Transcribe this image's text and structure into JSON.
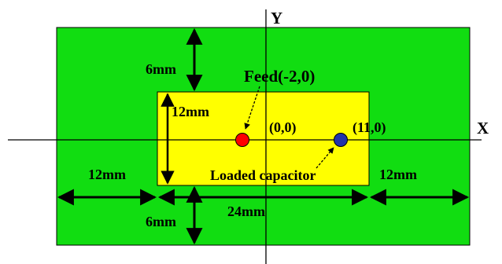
{
  "colors": {
    "background": "#ffffff",
    "ground_plane": "#11dd11",
    "patch": "#ffff00",
    "feed_point": "#ff0000",
    "capacitor_point": "#2233aa",
    "lines": "#000000"
  },
  "axes": {
    "x_label": "X",
    "y_label": "Y"
  },
  "dimensions": {
    "top_gap": "6mm",
    "bottom_gap": "6mm",
    "left_gap": "12mm",
    "right_gap": "12mm",
    "patch_height": "12mm",
    "patch_width": "24mm"
  },
  "points": {
    "origin_label": "(0,0)",
    "feed_label": "Feed(-2,0)",
    "capacitor_coord_label": "(11,0)",
    "capacitor_label": "Loaded capacitor"
  }
}
